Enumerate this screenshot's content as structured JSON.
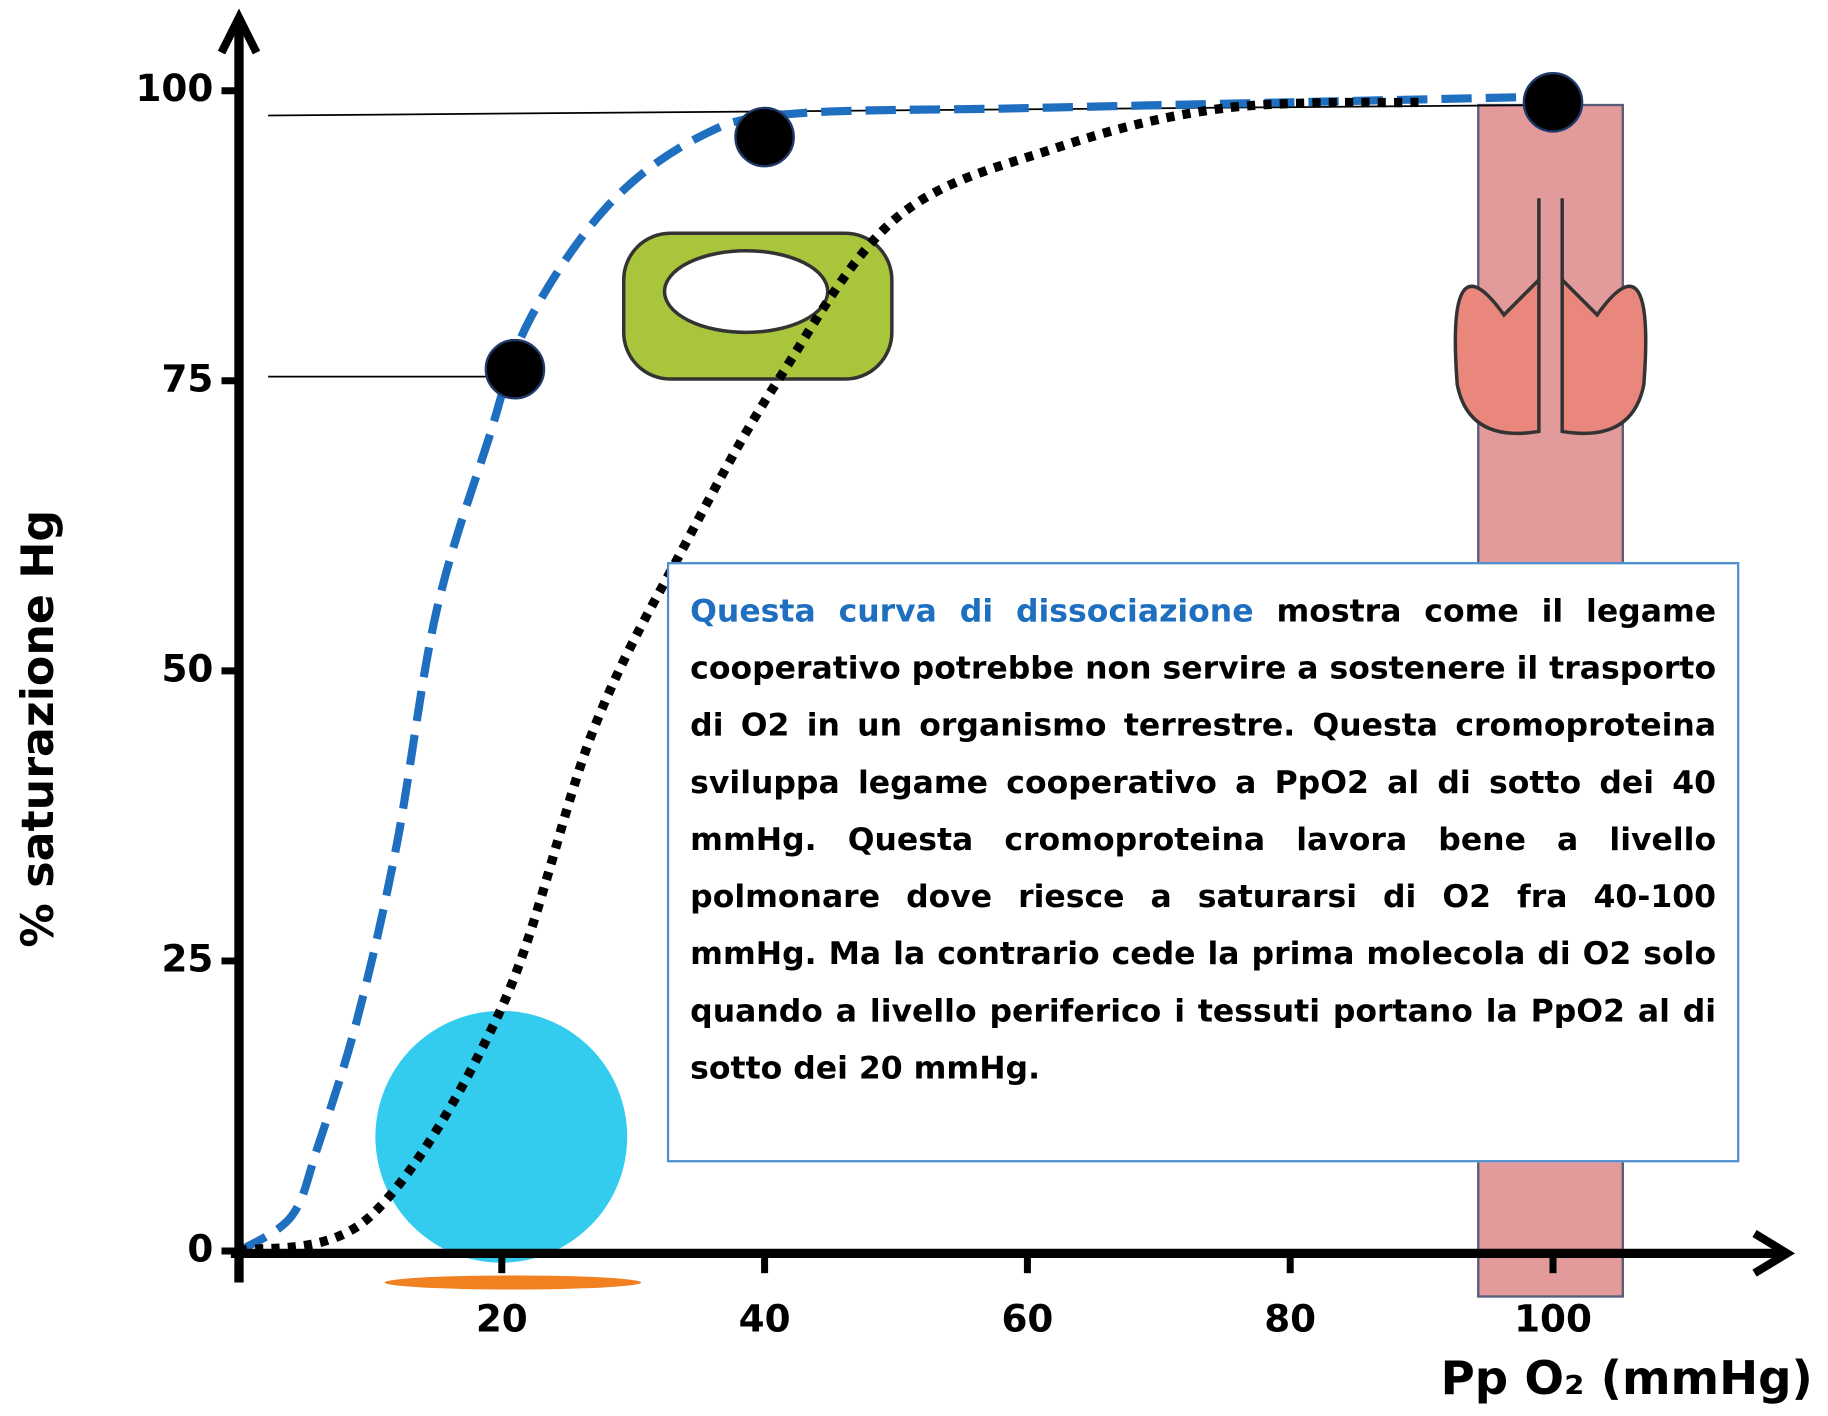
{
  "chart_data": {
    "type": "line",
    "y_label": "% saturazione Hg",
    "x_label": "Pp O₂ (mmHg)",
    "xlim": [
      0,
      118
    ],
    "ylim": [
      0,
      106
    ],
    "xticks": [
      20,
      40,
      60,
      80,
      100
    ],
    "yticks": [
      0,
      25,
      50,
      75,
      100
    ],
    "series": [
      {
        "style": "dashed",
        "color": "#1f6fc0",
        "x": [
          0,
          4,
          6,
          9,
          12,
          15,
          19,
          22,
          28,
          35,
          42,
          60,
          80,
          100
        ],
        "values": [
          0,
          3,
          9,
          20,
          35,
          55,
          70,
          80,
          90,
          96,
          98,
          98.5,
          99,
          99.5
        ]
      },
      {
        "style": "dotted",
        "color": "#000000",
        "x": [
          0,
          10,
          20,
          27,
          34,
          41,
          50,
          62,
          75,
          90
        ],
        "values": [
          0,
          3,
          21,
          45,
          61,
          75,
          89,
          95,
          98.5,
          99
        ]
      },
      {
        "style": "markers",
        "color": "#000000",
        "x": [
          21,
          40,
          100
        ],
        "values": [
          76,
          96,
          99
        ]
      }
    ],
    "annotation": {
      "highlight": "Questa curva di dissociazione",
      "text": "mostra come il legame cooperativo potrebbe non servire a sostenere il trasporto di O2 in un organismo terrestre. Questa cromoproteina sviluppa legame cooperativo a PpO2 al di sotto dei 40 mmHg. Questa cromoproteina lavora bene a livello polmonare dove riesce a saturarsi di O2 fra 40-100 mmHg. Ma la contrario cede la prima molecola di O2 solo quando a livello periferico i tessuti portano la PpO2 al di sotto dei 20 mmHg."
    }
  }
}
